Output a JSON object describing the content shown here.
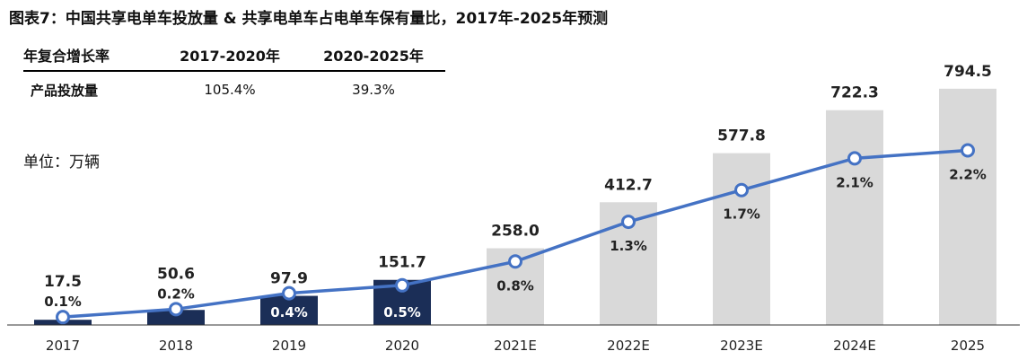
{
  "title": "图表7：中国共享电单车投放量 & 共享电单车占电单车保有量比，2017年-2025年预测",
  "growth_table": {
    "header": [
      "年复合增长率",
      "2017-2020年",
      "2020-2025年"
    ],
    "row": [
      "产品投放量",
      "105.4%",
      "39.3%"
    ]
  },
  "unit_label": "单位：万辆",
  "colors": {
    "actual_bar": "#1b2e57",
    "forecast_bar": "#d9d9d9",
    "line": "#4472c4"
  },
  "chart_data": {
    "type": "bar+line",
    "categories": [
      "2017",
      "2018",
      "2019",
      "2020",
      "2021E",
      "2022E",
      "2023E",
      "2024E",
      "2025"
    ],
    "series": [
      {
        "values": [
          17.5,
          50.6,
          97.9,
          151.7,
          258.0,
          412.7,
          577.8,
          722.3,
          794.5
        ],
        "kind": "bar"
      },
      {
        "values": [
          0.1,
          0.2,
          0.4,
          0.5,
          0.8,
          1.3,
          1.7,
          2.1,
          2.2
        ],
        "kind": "line",
        "unit": "%"
      }
    ],
    "value_labels": [
      "17.5",
      "50.6",
      "97.9",
      "151.7",
      "258.0",
      "412.7",
      "577.8",
      "722.3",
      "794.5"
    ],
    "pct_labels": [
      "0.1%",
      "0.2%",
      "0.4%",
      "0.5%",
      "0.8%",
      "1.3%",
      "1.7%",
      "2.1%",
      "2.2%"
    ],
    "forecast_from_index": 4,
    "bar_ylim": [
      0,
      800
    ],
    "line_ylim": [
      0,
      2.5
    ],
    "legend": "none",
    "grid": false
  }
}
